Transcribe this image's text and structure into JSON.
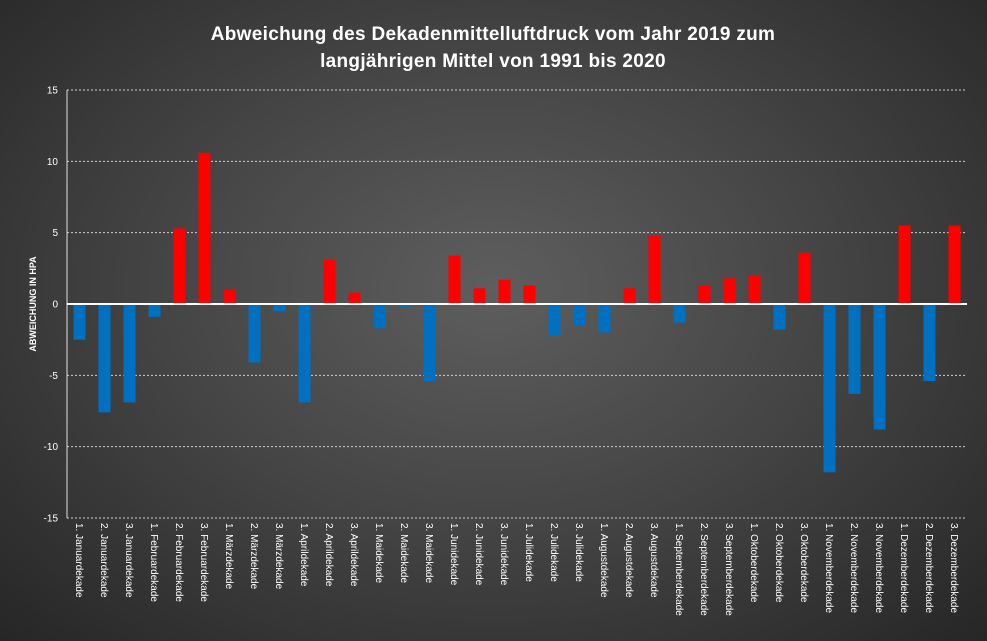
{
  "chart_data": {
    "type": "bar",
    "title_lines": [
      "Abweichung des Dekadenmittelluftdruck vom Jahr 2019 zum",
      "langjährigen Mittel von 1991 bis 2020"
    ],
    "xlabel": "",
    "ylabel": "ABWEICHUNG IN HPA",
    "ylim": [
      -15,
      15
    ],
    "yticks": [
      "15",
      "10",
      "5",
      "0",
      "-5",
      "-10",
      "-15"
    ],
    "grid": true,
    "positive_color": "#ff0000",
    "negative_color": "#0070c0",
    "categories": [
      "1. Januardekade",
      "2. Januardekade",
      "3. Januardekade",
      "1. Februardekade",
      "2. Februardekade",
      "3. Februardekade",
      "1. Märzdekade",
      "2. Märzdekade",
      "3. Märzdekade",
      "1. Aprildekade",
      "2. Aprildekade",
      "3. Aprildekade",
      "1. Maidekade",
      "2. Maidekade",
      "3. Maidekade",
      "1. Junidekade",
      "2. Junidekade",
      "3. Junidekade",
      "1. Julidekade",
      "2. Julidekade",
      "3. Julidekade",
      "1. Augustdekade",
      "2. Augustdekade",
      "3. Augustdekade",
      "1. Septemberdekade",
      "2. Septemberdekade",
      "3. Septemberdekade",
      "1. Oktoberdekade",
      "2. Oktoberdekade",
      "3. Oktoberdekade",
      "1. Novemberdekade",
      "2. Novemberdekade",
      "3. Novemberdekade",
      "1. Dezemberdekade",
      "2. Dezemberdekade",
      "3. Dezemberdekade"
    ],
    "values": [
      -2.5,
      -7.6,
      -6.9,
      -0.9,
      5.3,
      10.6,
      1.0,
      -4.1,
      -0.5,
      -6.9,
      3.1,
      0.8,
      -1.7,
      -0.2,
      -5.4,
      3.4,
      1.1,
      1.7,
      1.3,
      -2.2,
      -1.5,
      -2.0,
      1.1,
      4.8,
      -1.3,
      1.3,
      1.8,
      2.0,
      -1.8,
      3.6,
      -11.8,
      -6.3,
      -8.8,
      5.5,
      -5.4,
      5.5
    ]
  }
}
